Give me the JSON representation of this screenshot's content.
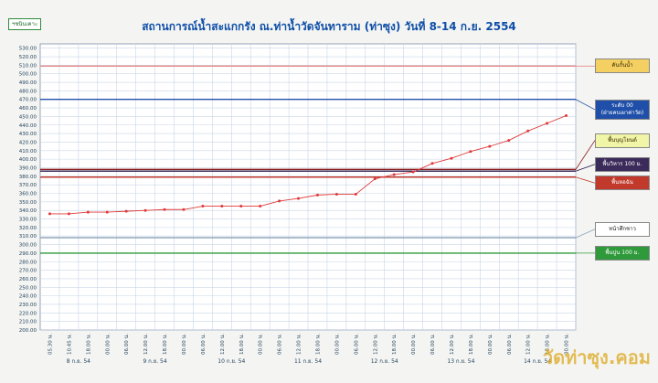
{
  "header": {
    "badge": "ฯชนินเคาะ",
    "title": "สถานการณ์น้ำสะแกกรัง ณ.ท่าน้ำวัดจันทาราม (ท่าซุง) วันที่ 8-14 ก.ย. 2554"
  },
  "watermark": "วัดท่าซุง.คอม",
  "colors": {
    "series": "#e03a3a",
    "grid": "#c9d6e6",
    "axis": "#7a8fa8",
    "tick_text": "#23425f"
  },
  "chart_data": {
    "type": "line",
    "ylim": [
      200,
      535
    ],
    "yticks": [
      200,
      210,
      220,
      230,
      240,
      250,
      260,
      270,
      280,
      290,
      300,
      310,
      320,
      330,
      340,
      350,
      360,
      370,
      380,
      390,
      400,
      410,
      420,
      430,
      440,
      450,
      460,
      470,
      480,
      490,
      500,
      510,
      520,
      530
    ],
    "x": [
      "05.30 น.",
      "10.45 น.",
      "18.00 น.",
      "00.00 น.",
      "06.00 น.",
      "12.00 น.",
      "18.00 น.",
      "00.00 น.",
      "06.00 น.",
      "12.00 น.",
      "18.00 น.",
      "00.00 น.",
      "06.00 น.",
      "12.00 น.",
      "18.00 น.",
      "00.00 น.",
      "06.00 น.",
      "12.00 น.",
      "18.00 น.",
      "00.00 น.",
      "06.00 น.",
      "12.00 น.",
      "18.00 น.",
      "00.00 น.",
      "06.00 น.",
      "12.00 น.",
      "18.00 น.",
      "00.00 น."
    ],
    "day_labels": [
      {
        "label": "8 ก.ย. 54",
        "from": 0,
        "to": 3
      },
      {
        "label": "9 ก.ย. 54",
        "from": 4,
        "to": 7
      },
      {
        "label": "10 ก.ย. 54",
        "from": 8,
        "to": 11
      },
      {
        "label": "11 ก.ย. 54",
        "from": 12,
        "to": 15
      },
      {
        "label": "12 ก.ย. 54",
        "from": 16,
        "to": 19
      },
      {
        "label": "13 ก.ย. 54",
        "from": 20,
        "to": 23
      },
      {
        "label": "14 ก.ย. 54",
        "from": 24,
        "to": 27
      }
    ],
    "series": [
      {
        "values": [
          336,
          336,
          338,
          338,
          339,
          340,
          341,
          341,
          345,
          345,
          345,
          345,
          351,
          354,
          358,
          359,
          359,
          377,
          382,
          385,
          395,
          401,
          409,
          415,
          422,
          433,
          442,
          451
        ]
      }
    ],
    "reference_lines": [
      {
        "label": "คันกั้นน้ำ",
        "value": 509,
        "color": "#e88a8a",
        "box_bg": "#f3d061",
        "box_fg": "#3a2a00",
        "box_center": 509
      },
      {
        "label": "ระดับ 00\n(ฝ่ายคบเผาค่าวัด)",
        "value": 470,
        "color": "#1f4fa8",
        "box_bg": "#1f4fa8",
        "box_fg": "#ffffff",
        "box_center": 458
      },
      {
        "label": "พื้นบุญโยนด์",
        "value": 388,
        "color": "#8b1a1a",
        "box_bg": "#f1f5a8",
        "box_fg": "#3a2a00",
        "box_center": 422
      },
      {
        "label": "พื้นวิหาร 100 ม.",
        "value": 386,
        "color": "#2a1a4a",
        "box_bg": "#3b2b5a",
        "box_fg": "#ffffff",
        "box_center": 394
      },
      {
        "label": "พื้นหอฉัน",
        "value": 379,
        "color": "#c0392b",
        "box_bg": "#c0392b",
        "box_fg": "#ffffff",
        "box_center": 372
      },
      {
        "label": "หน้าศึกชาว",
        "value": 308,
        "color": "#8aa0b8",
        "box_bg": "#ffffff",
        "box_fg": "#222222",
        "box_center": 318
      },
      {
        "label": "พื้นปูน 100 ม.",
        "value": 290,
        "color": "#2f9a3a",
        "box_bg": "#2f9a3a",
        "box_fg": "#ffffff",
        "box_center": 290
      }
    ]
  }
}
